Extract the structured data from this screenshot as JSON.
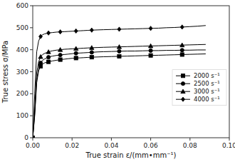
{
  "chart_data": {
    "type": "line",
    "xlabel": "True strain ε/(mm•mm⁻¹)",
    "ylabel": "True stress σ/MPa",
    "xlim": [
      0,
      0.1
    ],
    "ylim": [
      0,
      600
    ],
    "xticks": [
      {
        "value": 0,
        "label": "0.00"
      },
      0.02,
      0.04,
      0.06,
      0.08,
      {
        "value": 0.1,
        "label": "0.10"
      }
    ],
    "yticks": [
      0,
      100,
      200,
      300,
      400,
      500,
      600
    ],
    "legend": "right",
    "x": [
      0.0,
      0.001,
      0.002,
      0.003,
      0.004,
      0.005,
      0.006,
      0.007,
      0.008,
      0.009,
      0.01,
      0.012,
      0.014,
      0.016,
      0.018,
      0.02,
      0.022,
      0.024,
      0.026,
      0.028,
      0.03,
      0.033,
      0.036,
      0.04,
      0.044,
      0.048,
      0.052,
      0.056,
      0.06,
      0.064,
      0.068,
      0.072,
      0.076,
      0.08,
      0.084,
      0.088
    ],
    "series": [
      {
        "name": "2000 s⁻¹",
        "marker": "square",
        "color": "#000000",
        "values": [
          0,
          100,
          250,
          305,
          325,
          335,
          340,
          343,
          345,
          347,
          349,
          352,
          355,
          357,
          359,
          361,
          362,
          363,
          364,
          365,
          366,
          367,
          368,
          369,
          370,
          371,
          372,
          373,
          374,
          375,
          376,
          377,
          378,
          379,
          380,
          381
        ]
      },
      {
        "name": "2500 s⁻¹",
        "marker": "circle",
        "color": "#000000",
        "values": [
          0,
          110,
          265,
          315,
          340,
          352,
          358,
          362,
          366,
          369,
          371,
          374,
          376,
          378,
          380,
          382,
          384,
          385,
          386,
          387,
          388,
          390,
          391,
          392,
          393,
          394,
          394,
          395,
          396,
          396,
          397,
          397,
          398,
          398,
          399,
          399
        ]
      },
      {
        "name": "3000 s⁻¹",
        "marker": "triangle",
        "color": "#000000",
        "values": [
          0,
          130,
          295,
          345,
          368,
          378,
          383,
          387,
          390,
          393,
          395,
          398,
          400,
          402,
          403,
          404,
          405,
          406,
          407,
          408,
          409,
          410,
          411,
          412,
          413,
          414,
          415,
          416,
          417,
          418,
          419,
          420,
          421,
          422,
          423,
          424
        ]
      },
      {
        "name": "4000 s⁻¹",
        "marker": "diamond",
        "color": "#000000",
        "values": [
          0,
          200,
          390,
          440,
          460,
          468,
          472,
          474,
          476,
          477,
          478,
          480,
          481,
          482,
          483,
          484,
          485,
          486,
          487,
          488,
          489,
          490,
          491,
          492,
          493,
          494,
          495,
          496,
          497,
          498,
          500,
          501,
          503,
          505,
          507,
          510
        ]
      }
    ]
  }
}
